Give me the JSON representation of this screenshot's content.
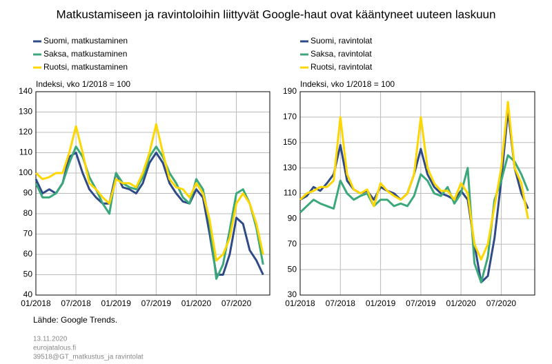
{
  "title": "Matkustamiseen ja ravintoloihin liittyvät Google-haut ovat kääntyneet uuteen laskuun",
  "source": "Lähde: Google Trends.",
  "footer": [
    "13.11.2020",
    "eurojatalous.fi",
    "39518@GT_matkustus_ja ravintolat"
  ],
  "chart_data": [
    {
      "type": "line",
      "y_label": "Indeksi, vko 1/2018 = 100",
      "x": [
        "01/2018",
        "02/2018",
        "03/2018",
        "04/2018",
        "05/2018",
        "06/2018",
        "07/2018",
        "08/2018",
        "09/2018",
        "10/2018",
        "11/2018",
        "12/2018",
        "01/2019",
        "02/2019",
        "03/2019",
        "04/2019",
        "05/2019",
        "06/2019",
        "07/2019",
        "08/2019",
        "09/2019",
        "10/2019",
        "11/2019",
        "12/2019",
        "01/2020",
        "02/2020",
        "03/2020",
        "04/2020",
        "05/2020",
        "06/2020",
        "07/2020",
        "08/2020",
        "09/2020",
        "10/2020",
        "11/2020"
      ],
      "xlim": [
        "01/2018",
        "12/2020"
      ],
      "xticks": [
        "01/2018",
        "07/2018",
        "01/2019",
        "07/2019",
        "01/2020",
        "07/2020"
      ],
      "ylim": [
        40,
        140
      ],
      "yticks": [
        40,
        50,
        60,
        70,
        80,
        90,
        100,
        110,
        120,
        130,
        140
      ],
      "grid": true,
      "series": [
        {
          "name": "Suomi, matkustaminen",
          "color": "#2e4a87",
          "values": [
            97,
            90,
            92,
            90,
            95,
            108,
            110,
            100,
            92,
            88,
            85,
            85,
            100,
            93,
            92,
            90,
            95,
            105,
            110,
            105,
            95,
            90,
            86,
            85,
            92,
            88,
            70,
            50,
            50,
            60,
            78,
            75,
            62,
            57,
            50
          ]
        },
        {
          "name": "Saksa, matkustaminen",
          "color": "#3aa87a",
          "values": [
            95,
            88,
            88,
            90,
            95,
            105,
            113,
            108,
            98,
            92,
            85,
            80,
            100,
            95,
            93,
            92,
            98,
            108,
            113,
            108,
            100,
            95,
            88,
            85,
            97,
            92,
            75,
            48,
            55,
            72,
            90,
            92,
            85,
            73,
            55
          ]
        },
        {
          "name": "Ruotsi, matkustaminen",
          "color": "#ffd700",
          "values": [
            100,
            97,
            98,
            100,
            100,
            110,
            123,
            110,
            95,
            92,
            88,
            85,
            97,
            95,
            95,
            93,
            100,
            110,
            124,
            110,
            97,
            93,
            92,
            88,
            95,
            90,
            77,
            57,
            60,
            68,
            85,
            90,
            85,
            75,
            60
          ]
        }
      ]
    },
    {
      "type": "line",
      "y_label": "Indeksi, vko 1/2018 = 100",
      "x": [
        "01/2018",
        "02/2018",
        "03/2018",
        "04/2018",
        "05/2018",
        "06/2018",
        "07/2018",
        "08/2018",
        "09/2018",
        "10/2018",
        "11/2018",
        "12/2018",
        "01/2019",
        "02/2019",
        "03/2019",
        "04/2019",
        "05/2019",
        "06/2019",
        "07/2019",
        "08/2019",
        "09/2019",
        "10/2019",
        "11/2019",
        "12/2019",
        "01/2020",
        "02/2020",
        "03/2020",
        "04/2020",
        "05/2020",
        "06/2020",
        "07/2020",
        "08/2020",
        "09/2020",
        "10/2020",
        "11/2020"
      ],
      "xlim": [
        "01/2018",
        "12/2020"
      ],
      "xticks": [
        "01/2018",
        "07/2018",
        "01/2019",
        "07/2019",
        "01/2020",
        "07/2020"
      ],
      "ylim": [
        30,
        190
      ],
      "yticks": [
        30,
        50,
        70,
        90,
        110,
        130,
        150,
        170,
        190
      ],
      "grid": true,
      "series": [
        {
          "name": "Suomi, ravintolat",
          "color": "#2e4a87",
          "values": [
            105,
            108,
            115,
            112,
            118,
            125,
            148,
            120,
            113,
            110,
            112,
            105,
            115,
            112,
            110,
            105,
            110,
            125,
            145,
            125,
            115,
            110,
            108,
            105,
            112,
            105,
            70,
            40,
            45,
            75,
            120,
            175,
            130,
            110,
            98
          ]
        },
        {
          "name": "Saksa, ravintolat",
          "color": "#3aa87a",
          "values": [
            95,
            100,
            105,
            102,
            100,
            98,
            120,
            110,
            105,
            108,
            110,
            100,
            105,
            105,
            100,
            102,
            100,
            108,
            125,
            120,
            110,
            108,
            115,
            102,
            110,
            130,
            55,
            40,
            60,
            105,
            120,
            140,
            135,
            125,
            112
          ]
        },
        {
          "name": "Ruotsi, ravintolat",
          "color": "#ffd700",
          "values": [
            105,
            110,
            112,
            115,
            115,
            120,
            170,
            125,
            113,
            110,
            113,
            100,
            118,
            112,
            108,
            105,
            110,
            125,
            170,
            130,
            118,
            112,
            112,
            105,
            118,
            110,
            70,
            58,
            70,
            100,
            130,
            182,
            130,
            118,
            90
          ]
        }
      ]
    }
  ]
}
